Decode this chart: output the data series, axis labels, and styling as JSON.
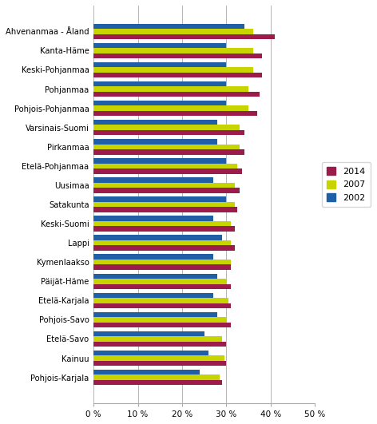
{
  "categories": [
    "Ahvenanmaa - Åland",
    "Kanta-Häme",
    "Keski-Pohjanmaa",
    "Pohjanmaa",
    "Pohjois-Pohjanmaa",
    "Varsinais-Suomi",
    "Pirkanmaa",
    "Etelä-Pohjanmaa",
    "Uusimaa",
    "Satakunta",
    "Keski-Suomi",
    "Lappi",
    "Kymenlaakso",
    "Päijät-Häme",
    "Etelä-Karjala",
    "Pohjois-Savo",
    "Etelä-Savo",
    "Kainuu",
    "Pohjois-Karjala"
  ],
  "values_2014": [
    41,
    38,
    38,
    37.5,
    37,
    34,
    34,
    33.5,
    33,
    32.5,
    32,
    32,
    31,
    31,
    31,
    31,
    30,
    30,
    29
  ],
  "values_2007": [
    36,
    36,
    36,
    35,
    35,
    33,
    33,
    32.5,
    32,
    32,
    31,
    31,
    31,
    30,
    30.5,
    30,
    29,
    29.5,
    28.5
  ],
  "values_2002": [
    34,
    30,
    30,
    30,
    30,
    28,
    28,
    30,
    27,
    30,
    27,
    29,
    27,
    28,
    27,
    28,
    25,
    26,
    24
  ],
  "color_2014": "#9b1b4b",
  "color_2007": "#c8d400",
  "color_2002": "#1f5fa6",
  "xlim": [
    0,
    50
  ],
  "xticks": [
    0,
    10,
    20,
    30,
    40,
    50
  ],
  "xtick_labels": [
    "0 %",
    "10 %",
    "20 %",
    "30 %",
    "40 %",
    "50 %"
  ],
  "legend_labels": [
    "2014",
    "2007",
    "2002"
  ],
  "bar_height": 0.27,
  "figsize": [
    4.72,
    5.31
  ],
  "dpi": 100
}
